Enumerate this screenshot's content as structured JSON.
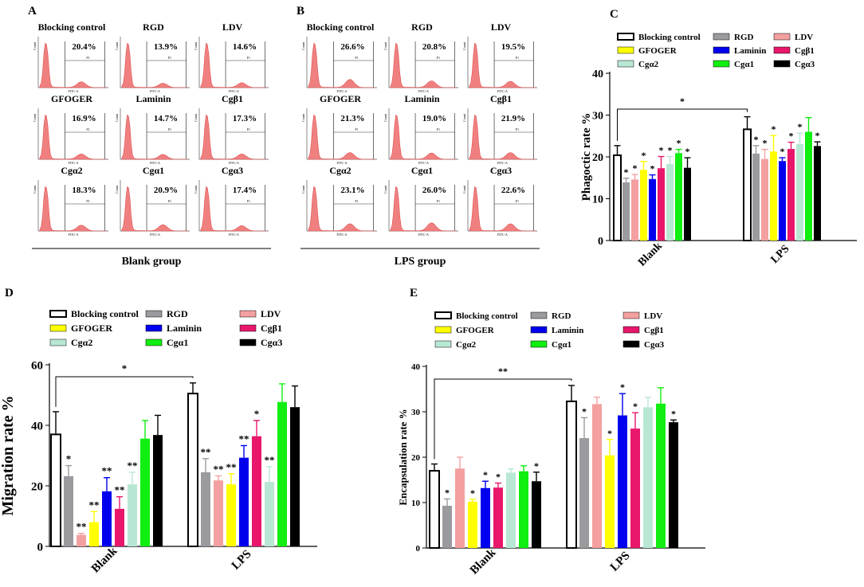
{
  "panels": {
    "A": {
      "label": "A",
      "group_label": "Blank group",
      "histograms": [
        {
          "name": "Blocking control",
          "pct": "20.4%",
          "peak2": 0.12
        },
        {
          "name": "RGD",
          "pct": "13.9%",
          "peak2": 0.09
        },
        {
          "name": "LDV",
          "pct": "14.6%",
          "peak2": 0.1
        },
        {
          "name": "GFOGER",
          "pct": "16.9%",
          "peak2": 0.11
        },
        {
          "name": "Laminin",
          "pct": "14.7%",
          "peak2": 0.1
        },
        {
          "name": "Cgβ1",
          "pct": "17.3%",
          "peak2": 0.11
        },
        {
          "name": "Cgα2",
          "pct": "18.3%",
          "peak2": 0.12
        },
        {
          "name": "Cgα1",
          "pct": "20.9%",
          "peak2": 0.13
        },
        {
          "name": "Cgα3",
          "pct": "17.4%",
          "peak2": 0.11
        }
      ]
    },
    "B": {
      "label": "B",
      "group_label": "LPS group",
      "histograms": [
        {
          "name": "Blocking control",
          "pct": "26.6%",
          "peak2": 0.17
        },
        {
          "name": "RGD",
          "pct": "20.8%",
          "peak2": 0.14
        },
        {
          "name": "LDV",
          "pct": "19.5%",
          "peak2": 0.13
        },
        {
          "name": "GFOGER",
          "pct": "21.3%",
          "peak2": 0.14
        },
        {
          "name": "Laminin",
          "pct": "19.0%",
          "peak2": 0.13
        },
        {
          "name": "Cgβ1",
          "pct": "21.9%",
          "peak2": 0.14
        },
        {
          "name": "Cgα2",
          "pct": "23.1%",
          "peak2": 0.15
        },
        {
          "name": "Cgα1",
          "pct": "26.0%",
          "peak2": 0.17
        },
        {
          "name": "Cgα3",
          "pct": "22.6%",
          "peak2": 0.15
        }
      ]
    },
    "hist_axis": {
      "xlabel": "FITC-A",
      "ylabel": "Count",
      "gate": "P1"
    }
  },
  "legend": [
    {
      "name": "Blocking control",
      "color": "#ffffff"
    },
    {
      "name": "RGD",
      "color": "#9b9a9f"
    },
    {
      "name": "LDV",
      "color": "#f4a0a0"
    },
    {
      "name": "GFOGER",
      "color": "#ffff00"
    },
    {
      "name": "Laminin",
      "color": "#0000ee"
    },
    {
      "name": "Cgβ1",
      "color": "#e8176b"
    },
    {
      "name": "Cgα2",
      "color": "#b8e8d4"
    },
    {
      "name": "Cgα1",
      "color": "#11ee11"
    },
    {
      "name": "Cgα3",
      "color": "#000000"
    }
  ],
  "chart_data": [
    {
      "id": "C",
      "type": "bar",
      "panel_label": "C",
      "ylabel": "Phagoctic rate %",
      "ylim": [
        0,
        40
      ],
      "yticks": [
        0,
        10,
        20,
        30,
        40
      ],
      "categories": [
        "Blank",
        "LPS"
      ],
      "bracket_label": "*",
      "series": [
        {
          "name": "Blocking control",
          "values": [
            20.4,
            26.6
          ],
          "errors": [
            2.3,
            3.0
          ],
          "sig": [
            "",
            ""
          ]
        },
        {
          "name": "RGD",
          "values": [
            13.9,
            20.8
          ],
          "errors": [
            1.0,
            1.9
          ],
          "sig": [
            "*",
            "*"
          ]
        },
        {
          "name": "LDV",
          "values": [
            14.6,
            19.5
          ],
          "errors": [
            1.2,
            2.3
          ],
          "sig": [
            "*",
            "*"
          ]
        },
        {
          "name": "GFOGER",
          "values": [
            16.9,
            21.3
          ],
          "errors": [
            2.0,
            3.8
          ],
          "sig": [
            "*",
            "*"
          ]
        },
        {
          "name": "Laminin",
          "values": [
            14.7,
            19.0
          ],
          "errors": [
            1.0,
            0.8
          ],
          "sig": [
            "*",
            "*"
          ]
        },
        {
          "name": "Cgβ1",
          "values": [
            17.3,
            21.9
          ],
          "errors": [
            2.8,
            1.6
          ],
          "sig": [
            "*",
            "*"
          ]
        },
        {
          "name": "Cgα2",
          "values": [
            18.3,
            23.1
          ],
          "errors": [
            1.8,
            2.6
          ],
          "sig": [
            "*",
            "*"
          ]
        },
        {
          "name": "Cgα1",
          "values": [
            20.9,
            26.0
          ],
          "errors": [
            0.9,
            3.4
          ],
          "sig": [
            "*",
            ""
          ]
        },
        {
          "name": "Cgα3",
          "values": [
            17.4,
            22.6
          ],
          "errors": [
            2.4,
            1.0
          ],
          "sig": [
            "*",
            "*"
          ]
        }
      ]
    },
    {
      "id": "D",
      "type": "bar",
      "panel_label": "D",
      "ylabel": "Migration rate %",
      "ylim": [
        0,
        60
      ],
      "yticks": [
        0,
        20,
        40,
        60
      ],
      "categories": [
        "Blank",
        "LPS"
      ],
      "bracket_label": "*",
      "series": [
        {
          "name": "Blocking control",
          "values": [
            37.0,
            50.5
          ],
          "errors": [
            7.5,
            3.5
          ],
          "sig": [
            "",
            ""
          ]
        },
        {
          "name": "RGD",
          "values": [
            23.2,
            24.5
          ],
          "errors": [
            3.5,
            4.5
          ],
          "sig": [
            "*",
            "**"
          ]
        },
        {
          "name": "LDV",
          "values": [
            3.8,
            21.8
          ],
          "errors": [
            0.5,
            1.5
          ],
          "sig": [
            "**",
            "**"
          ]
        },
        {
          "name": "GFOGER",
          "values": [
            8.0,
            20.5
          ],
          "errors": [
            3.5,
            3.5
          ],
          "sig": [
            "**",
            "**"
          ]
        },
        {
          "name": "Laminin",
          "values": [
            18.2,
            29.3
          ],
          "errors": [
            4.5,
            4.0
          ],
          "sig": [
            "**",
            "**"
          ]
        },
        {
          "name": "Cgβ1",
          "values": [
            12.4,
            36.4
          ],
          "errors": [
            4.0,
            5.2
          ],
          "sig": [
            "**",
            "*"
          ]
        },
        {
          "name": "Cgα2",
          "values": [
            20.5,
            21.3
          ],
          "errors": [
            4.0,
            5.0
          ],
          "sig": [
            "**",
            "**"
          ]
        },
        {
          "name": "Cgα1",
          "values": [
            35.6,
            47.7
          ],
          "errors": [
            6.0,
            6.0
          ],
          "sig": [
            "",
            ""
          ]
        },
        {
          "name": "Cgα3",
          "values": [
            36.8,
            46.0
          ],
          "errors": [
            6.5,
            7.0
          ],
          "sig": [
            "",
            ""
          ]
        }
      ]
    },
    {
      "id": "E",
      "type": "bar",
      "panel_label": "E",
      "ylabel": "Encapsulation rate %",
      "ylim": [
        0,
        40
      ],
      "yticks": [
        0,
        10,
        20,
        30,
        40
      ],
      "categories": [
        "Blank",
        "LPS"
      ],
      "bracket_label": "**",
      "series": [
        {
          "name": "Blocking control",
          "values": [
            17.0,
            32.3
          ],
          "errors": [
            1.5,
            3.5
          ],
          "sig": [
            "",
            ""
          ]
        },
        {
          "name": "RGD",
          "values": [
            9.3,
            24.2
          ],
          "errors": [
            1.5,
            4.5
          ],
          "sig": [
            "*",
            "*"
          ]
        },
        {
          "name": "LDV",
          "values": [
            17.5,
            31.7
          ],
          "errors": [
            2.5,
            1.5
          ],
          "sig": [
            "",
            ""
          ]
        },
        {
          "name": "GFOGER",
          "values": [
            10.2,
            20.4
          ],
          "errors": [
            0.5,
            3.5
          ],
          "sig": [
            "*",
            "*"
          ]
        },
        {
          "name": "Laminin",
          "values": [
            13.2,
            29.2
          ],
          "errors": [
            1.5,
            4.8
          ],
          "sig": [
            "*",
            "*"
          ]
        },
        {
          "name": "Cgβ1",
          "values": [
            13.3,
            26.3
          ],
          "errors": [
            1.0,
            3.5
          ],
          "sig": [
            "*",
            "*"
          ]
        },
        {
          "name": "Cgα2",
          "values": [
            16.6,
            31.0
          ],
          "errors": [
            0.8,
            2.2
          ],
          "sig": [
            "",
            ""
          ]
        },
        {
          "name": "Cgα1",
          "values": [
            16.9,
            31.8
          ],
          "errors": [
            1.2,
            3.5
          ],
          "sig": [
            "",
            ""
          ]
        },
        {
          "name": "Cgα3",
          "values": [
            14.7,
            27.7
          ],
          "errors": [
            2.0,
            0.5
          ],
          "sig": [
            "*",
            "*"
          ]
        }
      ]
    }
  ]
}
